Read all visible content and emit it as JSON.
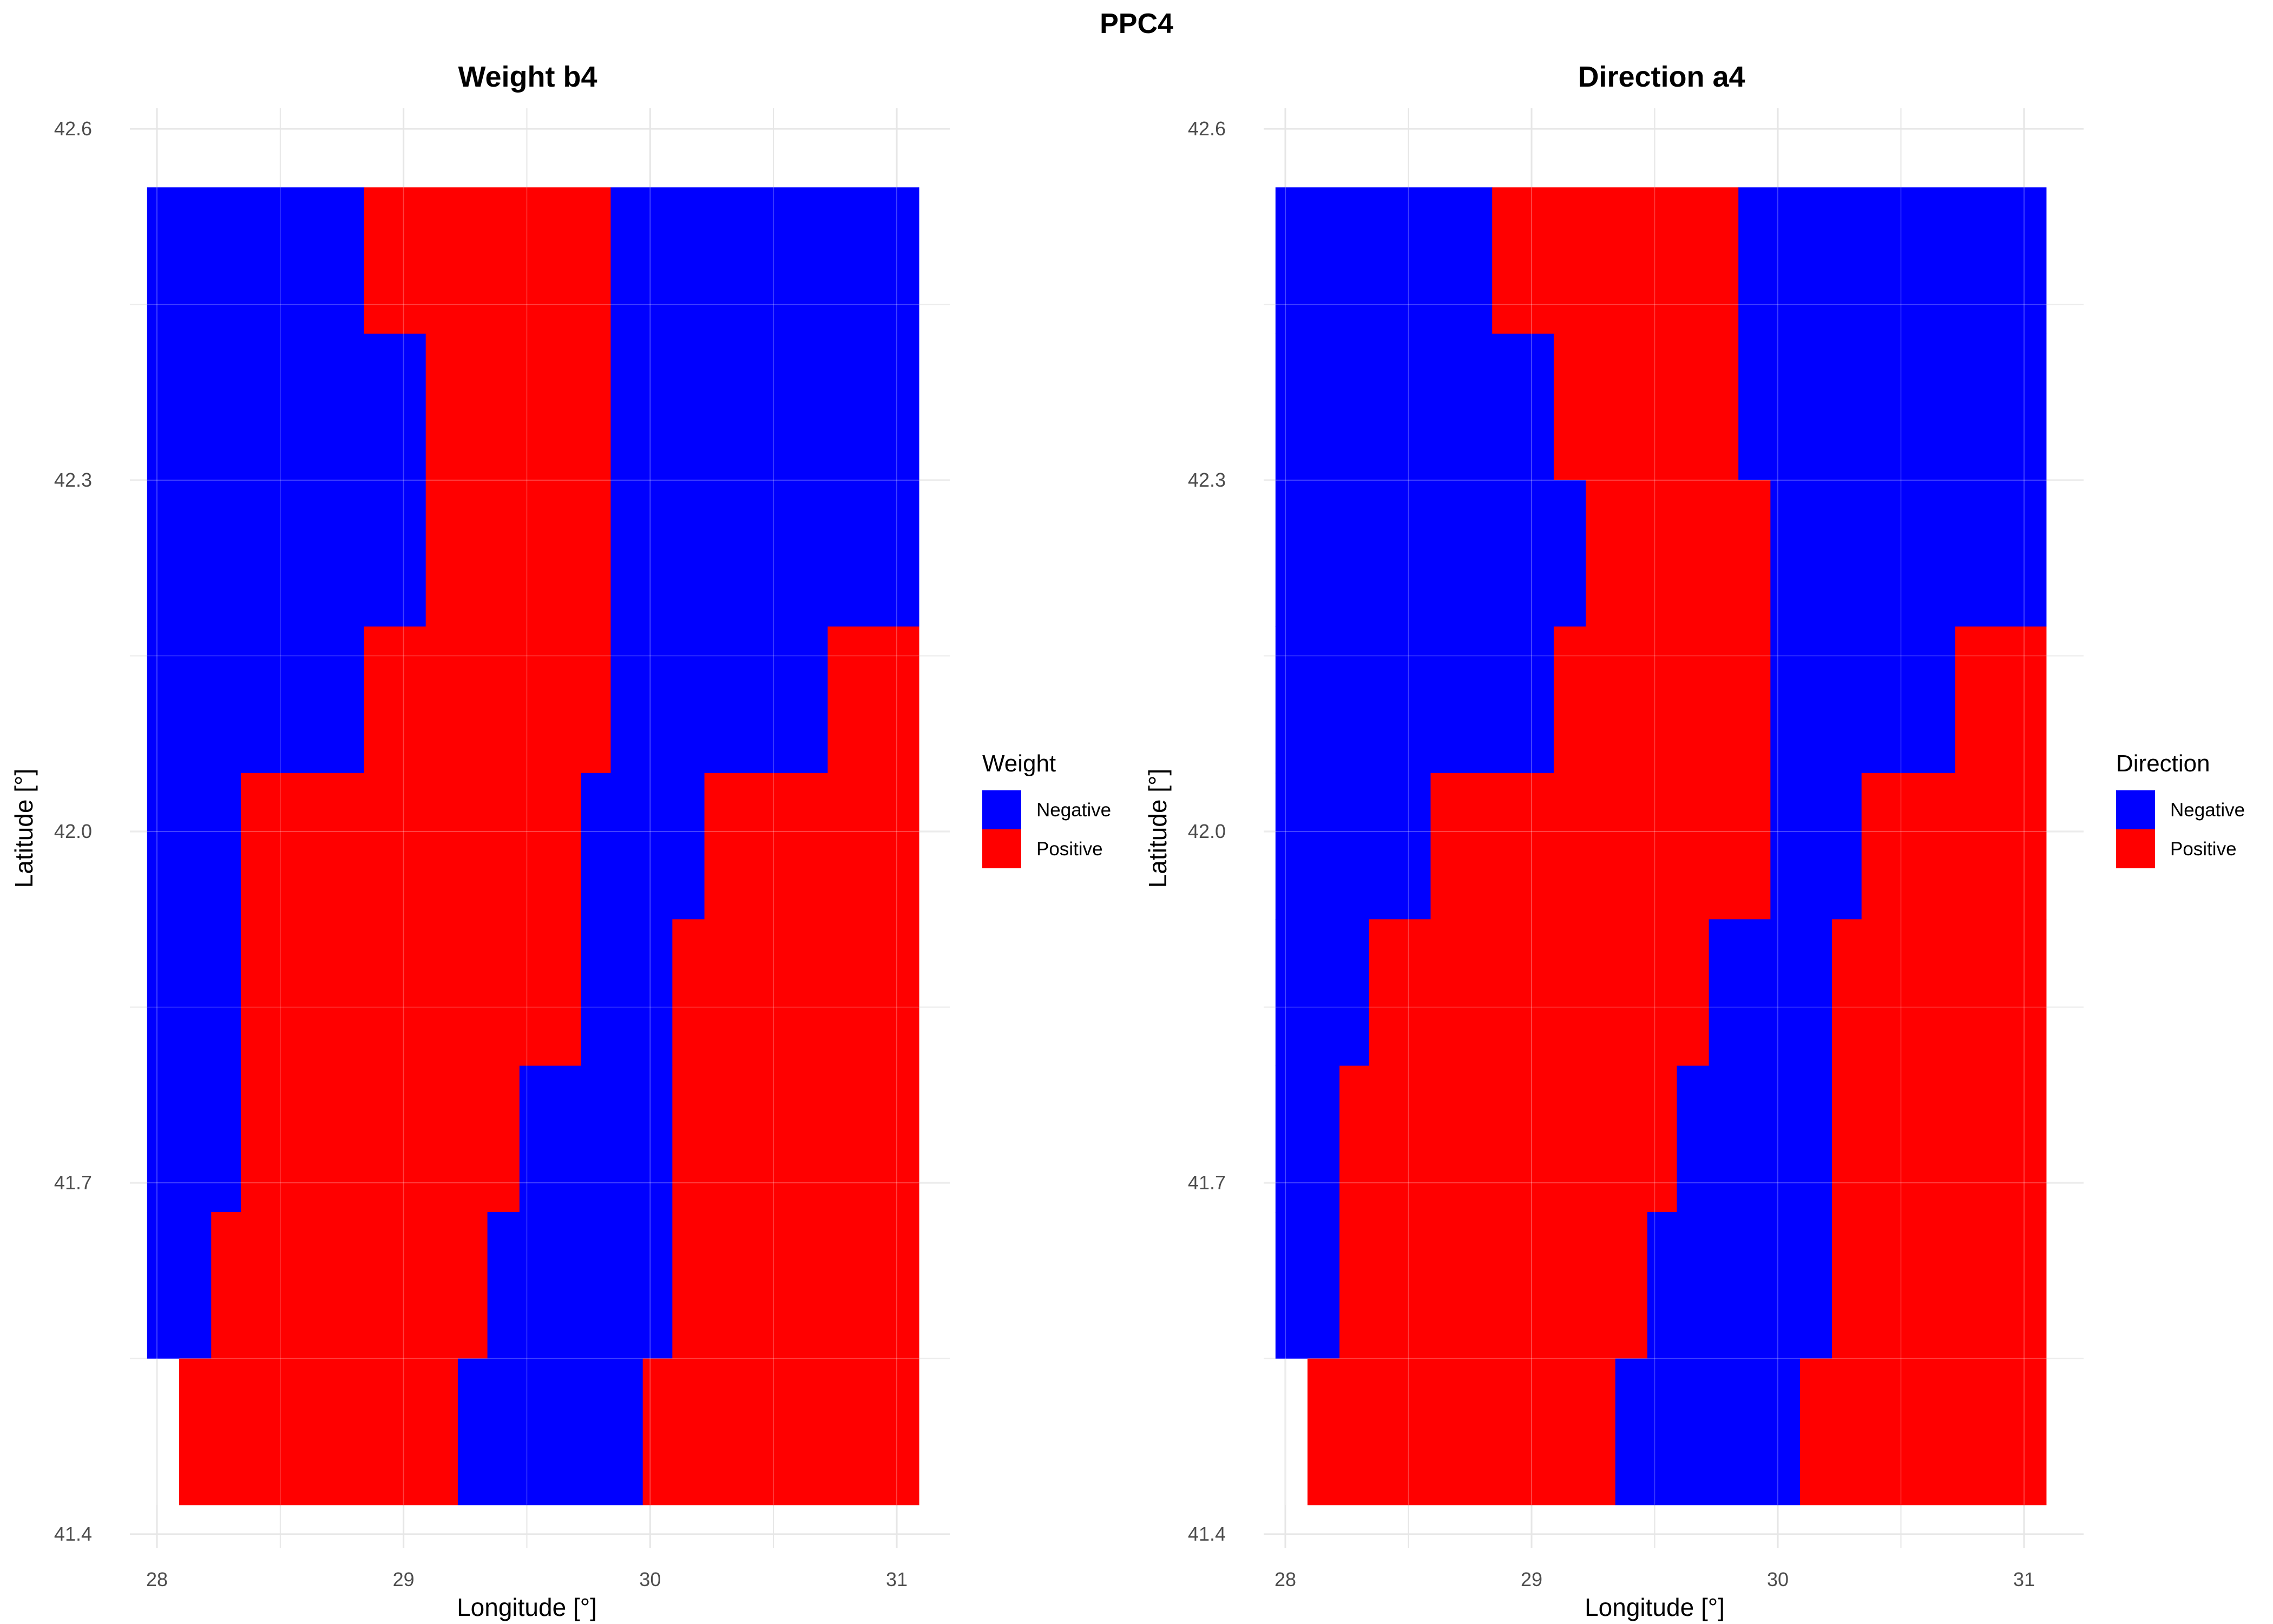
{
  "title": "PPC4",
  "colors": {
    "Negative": "#0000ff",
    "Positive": "#ff0000"
  },
  "chart_data": [
    {
      "type": "heatmap",
      "title": "Weight b4",
      "xlabel": "Longitude [°]",
      "ylabel": "Latitude [°]",
      "xticks": [
        "28",
        "29",
        "30",
        "31"
      ],
      "yticks": [
        "41.4",
        "41.7",
        "42.0",
        "42.3",
        "42.6"
      ],
      "xlim": [
        27.9,
        31.2
      ],
      "ylim": [
        41.4,
        42.6
      ],
      "grid": true,
      "legend": {
        "title": "Weight",
        "position": "right",
        "entries": [
          "Negative",
          "Positive"
        ]
      },
      "cell_lat_height": 0.125,
      "rows": [
        {
          "lat_bottom": 42.425,
          "lat_top": 42.55,
          "segments": [
            {
              "from": 27.96,
              "to": 28.84,
              "value": "Negative"
            },
            {
              "from": 28.84,
              "to": 29.84,
              "value": "Positive"
            },
            {
              "from": 29.84,
              "to": 31.09,
              "value": "Negative"
            }
          ]
        },
        {
          "lat_bottom": 42.3,
          "lat_top": 42.425,
          "segments": [
            {
              "from": 27.96,
              "to": 29.09,
              "value": "Negative"
            },
            {
              "from": 29.09,
              "to": 29.84,
              "value": "Positive"
            },
            {
              "from": 29.84,
              "to": 31.09,
              "value": "Negative"
            }
          ]
        },
        {
          "lat_bottom": 42.175,
          "lat_top": 42.3,
          "segments": [
            {
              "from": 27.96,
              "to": 29.09,
              "value": "Negative"
            },
            {
              "from": 29.09,
              "to": 29.84,
              "value": "Positive"
            },
            {
              "from": 29.84,
              "to": 31.09,
              "value": "Negative"
            }
          ]
        },
        {
          "lat_bottom": 42.05,
          "lat_top": 42.175,
          "segments": [
            {
              "from": 27.96,
              "to": 28.84,
              "value": "Negative"
            },
            {
              "from": 28.84,
              "to": 29.84,
              "value": "Positive"
            },
            {
              "from": 29.84,
              "to": 30.72,
              "value": "Negative"
            },
            {
              "from": 30.72,
              "to": 31.09,
              "value": "Positive"
            }
          ]
        },
        {
          "lat_bottom": 41.925,
          "lat_top": 42.05,
          "segments": [
            {
              "from": 27.96,
              "to": 28.34,
              "value": "Negative"
            },
            {
              "from": 28.34,
              "to": 29.72,
              "value": "Positive"
            },
            {
              "from": 29.72,
              "to": 30.22,
              "value": "Negative"
            },
            {
              "from": 30.22,
              "to": 31.09,
              "value": "Positive"
            }
          ]
        },
        {
          "lat_bottom": 41.8,
          "lat_top": 41.925,
          "segments": [
            {
              "from": 27.96,
              "to": 28.34,
              "value": "Negative"
            },
            {
              "from": 28.34,
              "to": 29.72,
              "value": "Positive"
            },
            {
              "from": 29.72,
              "to": 30.09,
              "value": "Negative"
            },
            {
              "from": 30.09,
              "to": 31.09,
              "value": "Positive"
            }
          ]
        },
        {
          "lat_bottom": 41.675,
          "lat_top": 41.8,
          "segments": [
            {
              "from": 27.96,
              "to": 28.34,
              "value": "Negative"
            },
            {
              "from": 28.34,
              "to": 29.47,
              "value": "Positive"
            },
            {
              "from": 29.47,
              "to": 30.09,
              "value": "Negative"
            },
            {
              "from": 30.09,
              "to": 31.09,
              "value": "Positive"
            }
          ]
        },
        {
          "lat_bottom": 41.55,
          "lat_top": 41.675,
          "segments": [
            {
              "from": 27.96,
              "to": 28.22,
              "value": "Negative"
            },
            {
              "from": 28.22,
              "to": 29.34,
              "value": "Positive"
            },
            {
              "from": 29.34,
              "to": 30.09,
              "value": "Negative"
            },
            {
              "from": 30.09,
              "to": 31.09,
              "value": "Positive"
            }
          ]
        },
        {
          "lat_bottom": 41.425,
          "lat_top": 41.55,
          "segments": [
            {
              "from": 28.09,
              "to": 29.22,
              "value": "Positive"
            },
            {
              "from": 29.22,
              "to": 29.97,
              "value": "Negative"
            },
            {
              "from": 29.97,
              "to": 31.09,
              "value": "Positive"
            }
          ]
        }
      ]
    },
    {
      "type": "heatmap",
      "title": "Direction a4",
      "xlabel": "Longitude [°]",
      "ylabel": "Latitude [°]",
      "xticks": [
        "28",
        "29",
        "30",
        "31"
      ],
      "yticks": [
        "41.4",
        "41.7",
        "42.0",
        "42.3",
        "42.6"
      ],
      "xlim": [
        27.9,
        31.2
      ],
      "ylim": [
        41.4,
        42.6
      ],
      "grid": true,
      "legend": {
        "title": "Direction",
        "position": "right",
        "entries": [
          "Negative",
          "Positive"
        ]
      },
      "cell_lat_height": 0.125,
      "rows": [
        {
          "lat_bottom": 42.425,
          "lat_top": 42.55,
          "segments": [
            {
              "from": 27.96,
              "to": 28.84,
              "value": "Negative"
            },
            {
              "from": 28.84,
              "to": 29.84,
              "value": "Positive"
            },
            {
              "from": 29.84,
              "to": 31.09,
              "value": "Negative"
            }
          ]
        },
        {
          "lat_bottom": 42.3,
          "lat_top": 42.425,
          "segments": [
            {
              "from": 27.96,
              "to": 29.09,
              "value": "Negative"
            },
            {
              "from": 29.09,
              "to": 29.84,
              "value": "Positive"
            },
            {
              "from": 29.84,
              "to": 31.09,
              "value": "Negative"
            }
          ]
        },
        {
          "lat_bottom": 42.175,
          "lat_top": 42.3,
          "segments": [
            {
              "from": 27.96,
              "to": 29.22,
              "value": "Negative"
            },
            {
              "from": 29.22,
              "to": 29.97,
              "value": "Positive"
            },
            {
              "from": 29.97,
              "to": 31.09,
              "value": "Negative"
            }
          ]
        },
        {
          "lat_bottom": 42.05,
          "lat_top": 42.175,
          "segments": [
            {
              "from": 27.96,
              "to": 29.09,
              "value": "Negative"
            },
            {
              "from": 29.09,
              "to": 29.97,
              "value": "Positive"
            },
            {
              "from": 29.97,
              "to": 30.72,
              "value": "Negative"
            },
            {
              "from": 30.72,
              "to": 31.09,
              "value": "Positive"
            }
          ]
        },
        {
          "lat_bottom": 41.925,
          "lat_top": 42.05,
          "segments": [
            {
              "from": 27.96,
              "to": 28.59,
              "value": "Negative"
            },
            {
              "from": 28.59,
              "to": 29.97,
              "value": "Positive"
            },
            {
              "from": 29.97,
              "to": 30.34,
              "value": "Negative"
            },
            {
              "from": 30.34,
              "to": 31.09,
              "value": "Positive"
            }
          ]
        },
        {
          "lat_bottom": 41.8,
          "lat_top": 41.925,
          "segments": [
            {
              "from": 27.96,
              "to": 28.34,
              "value": "Negative"
            },
            {
              "from": 28.34,
              "to": 29.72,
              "value": "Positive"
            },
            {
              "from": 29.72,
              "to": 30.22,
              "value": "Negative"
            },
            {
              "from": 30.22,
              "to": 31.09,
              "value": "Positive"
            }
          ]
        },
        {
          "lat_bottom": 41.675,
          "lat_top": 41.8,
          "segments": [
            {
              "from": 27.96,
              "to": 28.22,
              "value": "Negative"
            },
            {
              "from": 28.22,
              "to": 29.59,
              "value": "Positive"
            },
            {
              "from": 29.59,
              "to": 30.22,
              "value": "Negative"
            },
            {
              "from": 30.22,
              "to": 31.09,
              "value": "Positive"
            }
          ]
        },
        {
          "lat_bottom": 41.55,
          "lat_top": 41.675,
          "segments": [
            {
              "from": 27.96,
              "to": 28.22,
              "value": "Negative"
            },
            {
              "from": 28.22,
              "to": 29.47,
              "value": "Positive"
            },
            {
              "from": 29.47,
              "to": 30.22,
              "value": "Negative"
            },
            {
              "from": 30.22,
              "to": 31.09,
              "value": "Positive"
            }
          ]
        },
        {
          "lat_bottom": 41.425,
          "lat_top": 41.55,
          "segments": [
            {
              "from": 28.09,
              "to": 29.34,
              "value": "Positive"
            },
            {
              "from": 29.34,
              "to": 30.09,
              "value": "Negative"
            },
            {
              "from": 30.09,
              "to": 31.09,
              "value": "Positive"
            }
          ]
        }
      ]
    }
  ]
}
